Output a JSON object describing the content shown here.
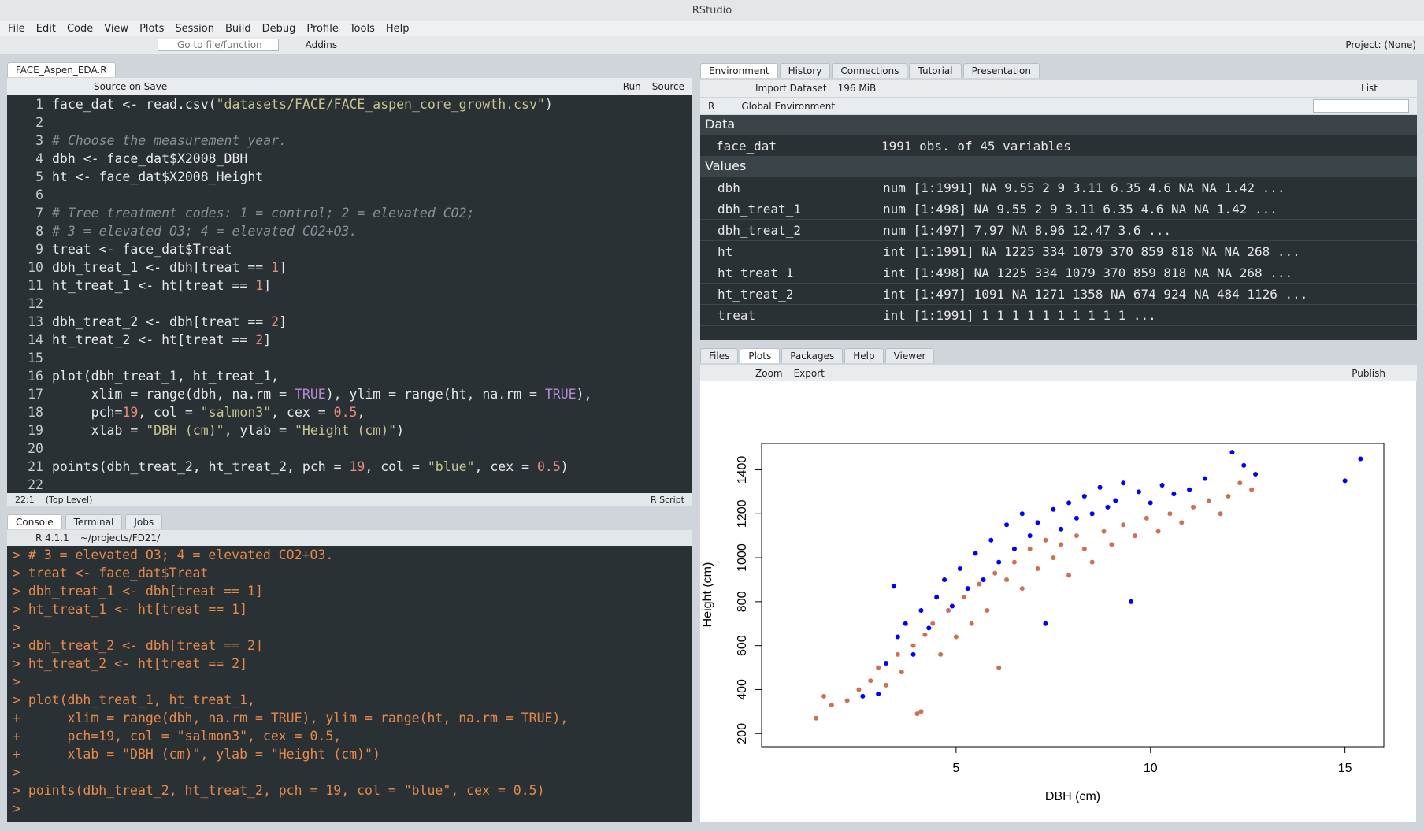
{
  "window": {
    "title": "RStudio"
  },
  "menu": [
    "File",
    "Edit",
    "Code",
    "View",
    "Plots",
    "Session",
    "Build",
    "Debug",
    "Profile",
    "Tools",
    "Help"
  ],
  "toolbar": {
    "goto": "Go to file/function",
    "addins": "Addins",
    "project": "Project: (None)"
  },
  "editor": {
    "tab": "FACE_Aspen_EDA.R",
    "source_on_save": "Source on Save",
    "run": "Run",
    "source": "Source",
    "line_numbers": [
      1,
      2,
      3,
      4,
      5,
      6,
      7,
      8,
      9,
      10,
      11,
      12,
      13,
      14,
      15,
      16,
      17,
      18,
      19,
      20,
      21,
      22
    ],
    "lines": [
      "face_dat <- read.csv(\"datasets/FACE/FACE_aspen_core_growth.csv\")",
      null,
      "# Choose the measurement year.",
      "dbh <- face_dat$X2008_DBH",
      "ht <- face_dat$X2008_Height",
      null,
      "# Tree treatment codes: 1 = control; 2 = elevated CO2;",
      "# 3 = elevated O3; 4 = elevated CO2+O3.",
      "treat <- face_dat$Treat",
      "dbh_treat_1 <- dbh[treat == 1]",
      "ht_treat_1 <- ht[treat == 1]",
      null,
      "dbh_treat_2 <- dbh[treat == 2]",
      "ht_treat_2 <- ht[treat == 2]",
      null,
      "plot(dbh_treat_1, ht_treat_1,",
      "     xlim = range(dbh, na.rm = TRUE), ylim = range(ht, na.rm = TRUE),",
      "     pch=19, col = \"salmon3\", cex = 0.5,",
      "     xlab = \"DBH (cm)\", ylab = \"Height (cm)\")",
      null,
      "points(dbh_treat_2, ht_treat_2, pch = 19, col = \"blue\", cex = 0.5)",
      null
    ],
    "position": "22:1",
    "scope": "(Top Level)",
    "filetype": "R Script"
  },
  "console": {
    "tabs": [
      "Console",
      "Terminal",
      "Jobs"
    ],
    "version": "R 4.1.1",
    "path": "~/projects/FD21/",
    "lines": [
      "> # 3 = elevated O3; 4 = elevated CO2+O3.",
      "> treat <- face_dat$Treat",
      "> dbh_treat_1 <- dbh[treat == 1]",
      "> ht_treat_1 <- ht[treat == 1]",
      ">",
      "> dbh_treat_2 <- dbh[treat == 2]",
      "> ht_treat_2 <- ht[treat == 2]",
      ">",
      "> plot(dbh_treat_1, ht_treat_1,",
      "+      xlim = range(dbh, na.rm = TRUE), ylim = range(ht, na.rm = TRUE),",
      "+      pch=19, col = \"salmon3\", cex = 0.5,",
      "+      xlab = \"DBH (cm)\", ylab = \"Height (cm)\")",
      ">",
      "> points(dbh_treat_2, ht_treat_2, pch = 19, col = \"blue\", cex = 0.5)",
      ">"
    ]
  },
  "environment": {
    "tabs": [
      "Environment",
      "History",
      "Connections",
      "Tutorial",
      "Presentation"
    ],
    "import": "Import Dataset",
    "memory": "196 MiB",
    "view": "List",
    "lang": "R",
    "scope": "Global Environment",
    "data_header": "Data",
    "data": [
      [
        "face_dat",
        "1991 obs. of 45 variables"
      ]
    ],
    "values_header": "Values",
    "values": [
      [
        "dbh",
        "num [1:1991] NA 9.55 2 9 3.11 6.35 4.6 NA NA 1.42 ..."
      ],
      [
        "dbh_treat_1",
        "num [1:498] NA 9.55 2 9 3.11 6.35 4.6 NA NA 1.42 ..."
      ],
      [
        "dbh_treat_2",
        "num [1:497] 7.97 NA 8.96 12.47 3.6 ..."
      ],
      [
        "ht",
        "int [1:1991] NA 1225 334 1079 370 859 818 NA NA 268 ..."
      ],
      [
        "ht_treat_1",
        "int [1:498] NA 1225 334 1079 370 859 818 NA NA 268 ..."
      ],
      [
        "ht_treat_2",
        "int [1:497] 1091 NA 1271 1358 NA 674 924 NA 484 1126 ..."
      ],
      [
        "treat",
        "int [1:1991] 1 1 1 1 1 1 1 1 1 1 ..."
      ]
    ]
  },
  "plots_pane": {
    "tabs": [
      "Files",
      "Plots",
      "Packages",
      "Help",
      "Viewer"
    ],
    "zoom": "Zoom",
    "export": "Export",
    "publish": "Publish"
  },
  "chart_data": {
    "type": "scatter",
    "x_label": "DBH (cm)",
    "y_label": "Height (cm)",
    "xlim": [
      0,
      16
    ],
    "ylim": [
      140,
      1520
    ],
    "xticks": [
      5,
      10,
      15
    ],
    "yticks": [
      200,
      400,
      600,
      800,
      1000,
      1200,
      1400
    ],
    "series": [
      {
        "color": "#cd7054",
        "x": [
          1.4,
          1.6,
          1.8,
          2.2,
          2.5,
          2.8,
          3.0,
          3.2,
          3.5,
          3.6,
          3.9,
          4.0,
          4.1,
          4.2,
          4.4,
          4.6,
          4.8,
          5.0,
          5.2,
          5.4,
          5.6,
          5.8,
          6.0,
          6.1,
          6.3,
          6.5,
          6.7,
          6.9,
          7.1,
          7.3,
          7.5,
          7.7,
          7.9,
          8.1,
          8.3,
          8.5,
          8.8,
          9.0,
          9.3,
          9.6,
          9.9,
          10.2,
          10.5,
          10.8,
          11.1,
          11.5,
          11.8,
          12.0,
          12.3,
          12.6
        ],
        "y": [
          270,
          370,
          330,
          350,
          400,
          440,
          500,
          420,
          560,
          480,
          600,
          290,
          300,
          650,
          700,
          560,
          760,
          640,
          820,
          700,
          880,
          760,
          930,
          500,
          900,
          980,
          860,
          1040,
          950,
          1080,
          1000,
          1060,
          920,
          1100,
          1040,
          980,
          1120,
          1060,
          1150,
          1100,
          1180,
          1120,
          1200,
          1160,
          1230,
          1260,
          1200,
          1280,
          1340,
          1310
        ]
      },
      {
        "color": "#0000ff",
        "x": [
          2.6,
          3.0,
          3.2,
          3.4,
          3.5,
          3.7,
          3.9,
          4.1,
          4.3,
          4.5,
          4.7,
          4.9,
          5.1,
          5.3,
          5.5,
          5.7,
          5.9,
          6.1,
          6.3,
          6.5,
          6.7,
          6.9,
          7.1,
          7.3,
          7.5,
          7.7,
          7.9,
          8.1,
          8.3,
          8.5,
          8.7,
          8.9,
          9.1,
          9.3,
          9.5,
          9.7,
          10.0,
          10.3,
          10.6,
          11.0,
          11.4,
          12.1,
          12.4,
          12.7,
          15.0,
          15.4
        ],
        "y": [
          370,
          380,
          520,
          870,
          640,
          700,
          560,
          760,
          680,
          820,
          900,
          780,
          950,
          860,
          1020,
          900,
          1080,
          980,
          1150,
          1040,
          1200,
          1100,
          1160,
          700,
          1220,
          1130,
          1250,
          1180,
          1280,
          1200,
          1320,
          1230,
          1260,
          1340,
          800,
          1300,
          1250,
          1330,
          1290,
          1310,
          1360,
          1480,
          1420,
          1380,
          1350,
          1450
        ]
      }
    ]
  }
}
